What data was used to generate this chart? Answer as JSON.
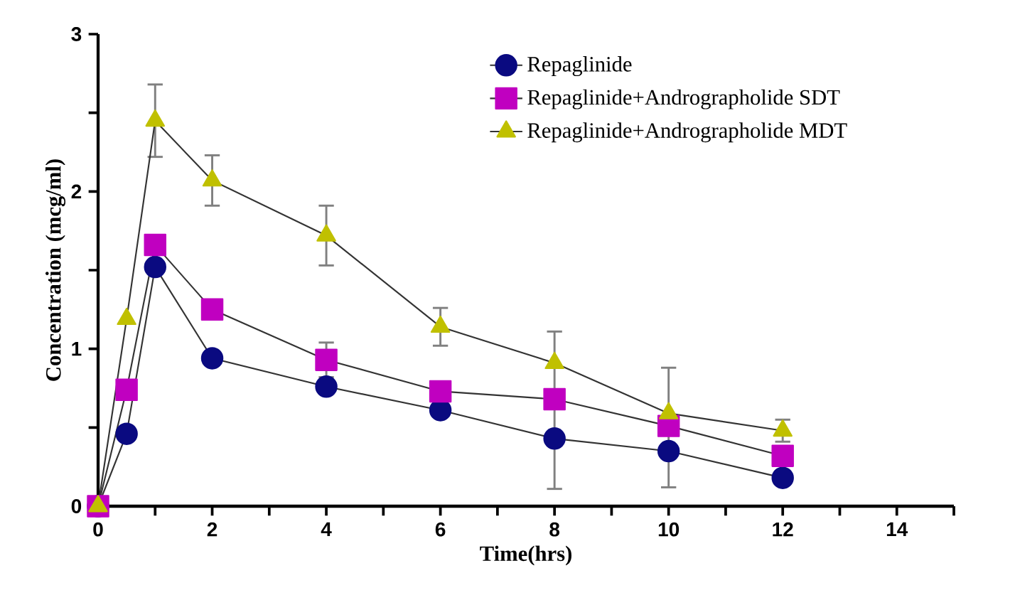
{
  "chart_data": {
    "type": "line",
    "xlabel": "Time(hrs)",
    "ylabel": "Concentration (mcg/ml)",
    "x": [
      0,
      0.5,
      1,
      2,
      4,
      6,
      8,
      10,
      12
    ],
    "series": [
      {
        "name": "Repaglinide",
        "color": "#0a0a80",
        "marker": "circle",
        "values": [
          0,
          0.46,
          1.52,
          0.94,
          0.76,
          0.61,
          0.43,
          0.35,
          0.18
        ],
        "errors": [
          null,
          null,
          null,
          null,
          null,
          null,
          [
            0.11,
            1.11
          ],
          [
            0.12,
            0.88
          ],
          null
        ]
      },
      {
        "name": "Repaglinide+Andrographolide SDT",
        "color": "#c000c0",
        "marker": "square",
        "values": [
          0,
          0.74,
          1.66,
          1.25,
          0.93,
          0.73,
          0.68,
          0.51,
          0.32
        ],
        "errors": [
          null,
          null,
          null,
          null,
          0.11,
          null,
          null,
          null,
          null
        ]
      },
      {
        "name": "Repaglinide+Andrographolide MDT",
        "color": "#c0c000",
        "marker": "triangle",
        "values": [
          0,
          1.19,
          2.45,
          2.07,
          1.72,
          1.14,
          0.91,
          0.59,
          0.48
        ],
        "errors": [
          null,
          null,
          0.23,
          0.16,
          0.19,
          0.12,
          null,
          null,
          0.07
        ]
      }
    ],
    "xlim": [
      0,
      15
    ],
    "ylim": [
      0,
      3
    ],
    "xticks": [
      0,
      {
        "value": 1,
        "label": null
      },
      2,
      {
        "value": 3,
        "label": null
      },
      4,
      {
        "value": 5,
        "label": null
      },
      6,
      {
        "value": 7,
        "label": null
      },
      8,
      {
        "value": 9,
        "label": null
      },
      10,
      {
        "value": 11,
        "label": null
      },
      12,
      {
        "value": 13,
        "label": null
      },
      14,
      {
        "value": 15,
        "label": null
      }
    ],
    "yticks": [
      0,
      {
        "value": 0.5,
        "label": null
      },
      1,
      {
        "value": 1.5,
        "label": null
      },
      2,
      {
        "value": 2.5,
        "label": null
      },
      3
    ],
    "legend": "top right",
    "grid": false,
    "line_style": "solid"
  }
}
